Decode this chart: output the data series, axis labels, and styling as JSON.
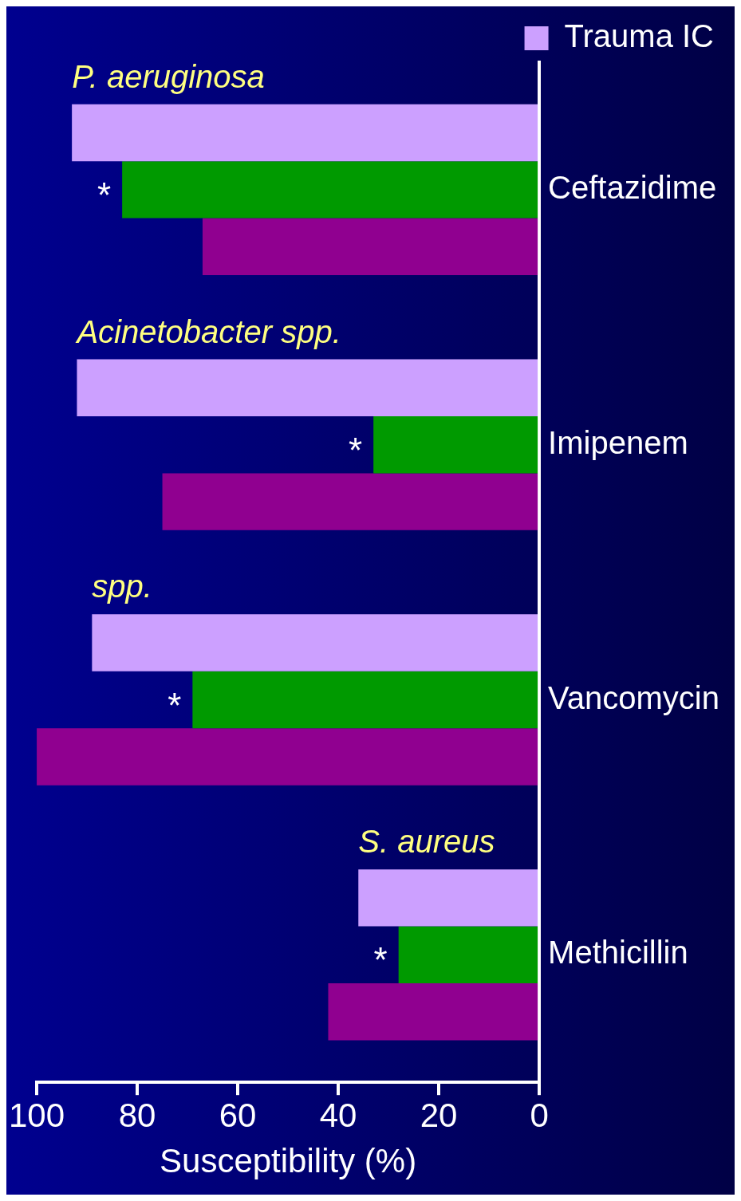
{
  "chart_data": {
    "type": "bar",
    "orientation": "horizontal",
    "xlabel": "Susceptibility (%)",
    "categories": [
      "Ceftazidime",
      "Imipenem",
      "Vancomycin",
      "Methicillin"
    ],
    "series": [
      {
        "name": "Trauma IC",
        "color": "#cca0ff",
        "values": [
          93,
          92,
          89,
          36
        ]
      },
      {
        "color": "#009a00",
        "values": [
          83,
          33,
          69,
          28
        ]
      },
      {
        "color": "#900090",
        "values": [
          67,
          75,
          100,
          42
        ]
      }
    ],
    "xlim": [
      100,
      0
    ],
    "xticks": [
      100,
      80,
      60,
      40,
      20,
      0
    ],
    "grid": false,
    "legend": "top right",
    "annotations": [
      "P. aeruginosa",
      {
        "text": "*",
        "x": 83,
        "y": "Ceftazidime"
      },
      "Acinetobacter spp.",
      {
        "text": "*",
        "x": 33,
        "y": "Imipenem"
      },
      "spp.",
      {
        "text": "*",
        "x": 69,
        "y": "Vancomycin"
      },
      "S. aureus",
      {
        "text": "*",
        "x": 28,
        "y": "Methicillin"
      }
    ]
  }
}
